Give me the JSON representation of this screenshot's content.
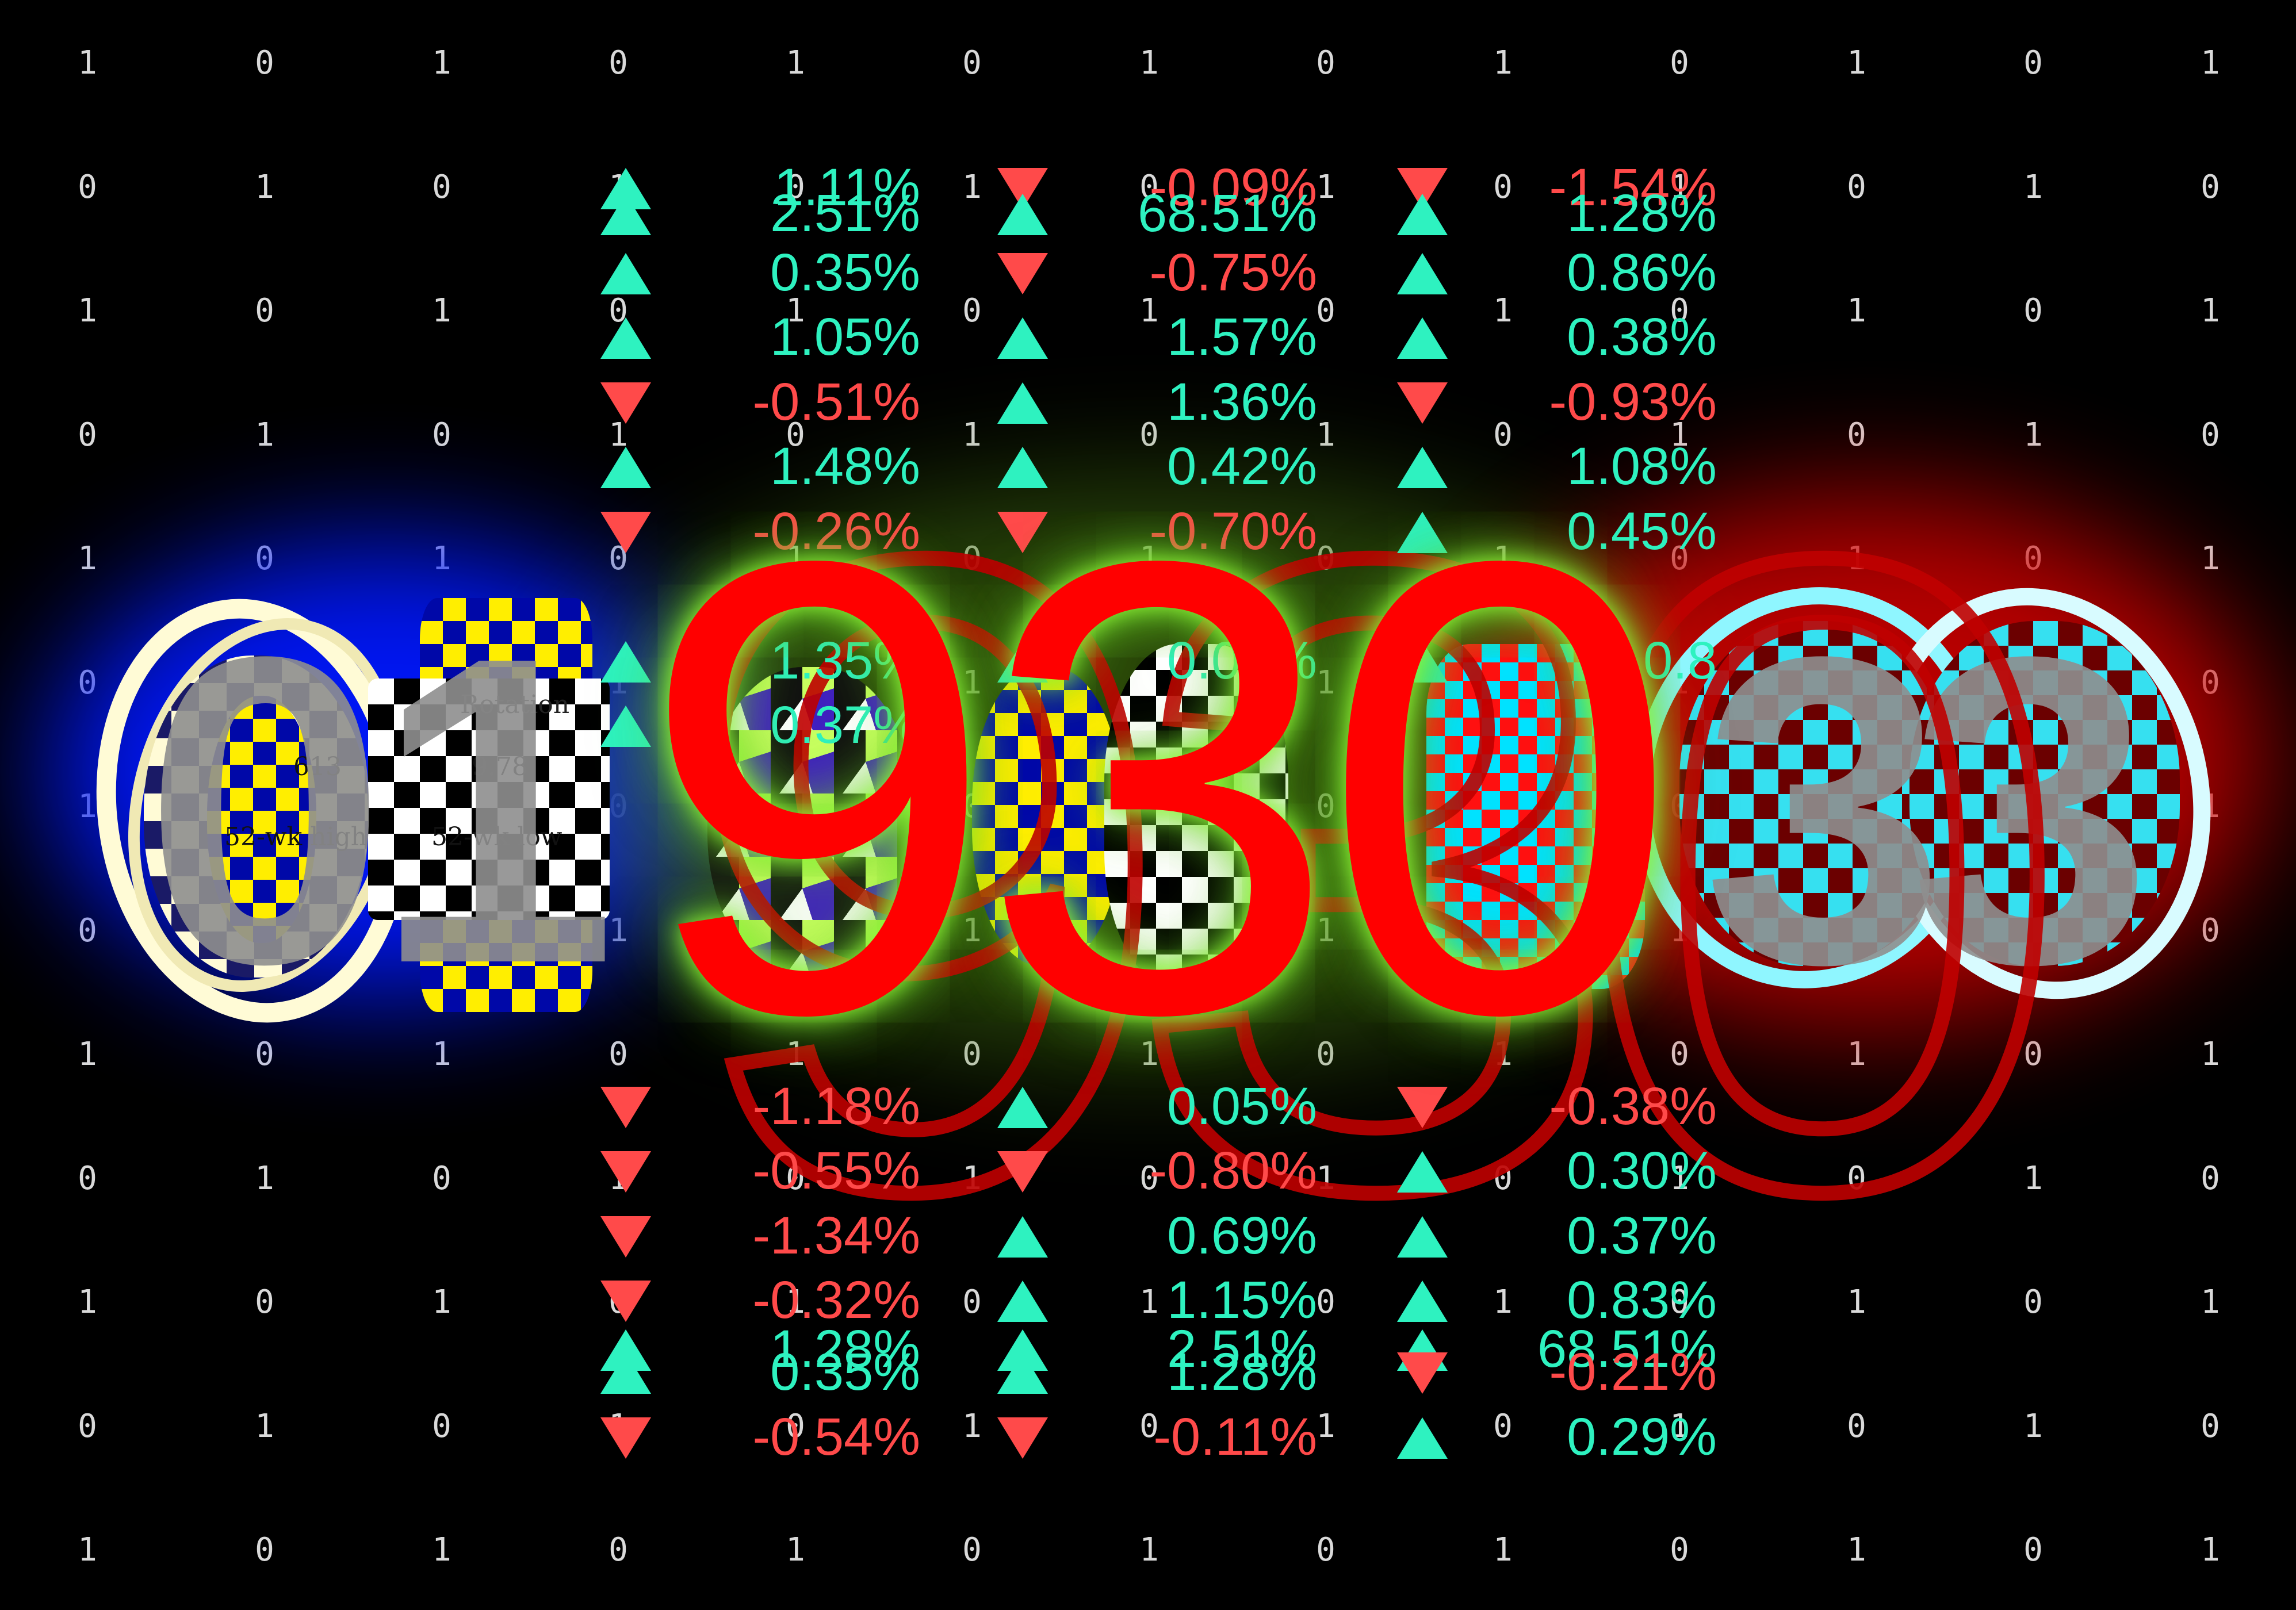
{
  "headline": "930",
  "ghost_headline": "930",
  "background_digits": [
    "0",
    "1",
    "3",
    "3"
  ],
  "stats_panel": {
    "header": "Rotation",
    "value_a": "613",
    "value_b": "9.78",
    "label_high": "52-wk high",
    "label_low": "52-wk low"
  },
  "binary_rows": [
    [
      "1",
      "0",
      "1",
      "0",
      "1",
      "0",
      "1",
      "0",
      "1",
      "0",
      "1",
      "0",
      "1"
    ],
    [
      "0",
      "1",
      "0",
      "1",
      "0",
      "1",
      "0",
      "1",
      "0",
      "1",
      "0",
      "1",
      "0"
    ],
    [
      "1",
      "0",
      "1",
      "0",
      "1",
      "0",
      "1",
      "0",
      "1",
      "0",
      "1",
      "0",
      "1"
    ],
    [
      "0",
      "1",
      "0",
      "1",
      "0",
      "1",
      "0",
      "1",
      "0",
      "1",
      "0",
      "1",
      "0"
    ],
    [
      "1",
      "0",
      "1",
      "0",
      "1",
      "0",
      "1",
      "0",
      "1",
      "0",
      "1",
      "0",
      "1"
    ],
    [
      "0",
      "1",
      "0",
      "1",
      "0",
      "1",
      "0",
      "1",
      "0",
      "1",
      "0",
      "1",
      "0"
    ],
    [
      "1",
      "0",
      "1",
      "0",
      "1",
      "0",
      "1",
      "0",
      "1",
      "0",
      "1",
      "0",
      "1"
    ],
    [
      "0",
      "1",
      "0",
      "1",
      "0",
      "1",
      "0",
      "1",
      "0",
      "1",
      "0",
      "1",
      "0"
    ],
    [
      "1",
      "0",
      "1",
      "0",
      "1",
      "0",
      "1",
      "0",
      "1",
      "0",
      "1",
      "0",
      "1"
    ],
    [
      "0",
      "1",
      "0",
      "1",
      "0",
      "1",
      "0",
      "1",
      "0",
      "1",
      "0",
      "1",
      "0"
    ],
    [
      "1",
      "0",
      "1",
      "0",
      "1",
      "0",
      "1",
      "0",
      "1",
      "0",
      "1",
      "0",
      "1"
    ],
    [
      "0",
      "1",
      "0",
      "1",
      "0",
      "1",
      "0",
      "1",
      "0",
      "1",
      "0",
      "1",
      "0"
    ],
    [
      "1",
      "0",
      "1",
      "0",
      "1",
      "0",
      "1",
      "0",
      "1",
      "0",
      "1",
      "0",
      "1"
    ]
  ],
  "ticker_columns": [
    [
      {
        "dir": "up",
        "value": "1.11%"
      },
      {
        "dir": "up",
        "value": "2.51%"
      },
      {
        "dir": "up",
        "value": "0.35%"
      },
      {
        "dir": "up",
        "value": "1.05%"
      },
      {
        "dir": "down",
        "value": "-0.51%"
      },
      {
        "dir": "up",
        "value": "1.48%"
      },
      {
        "dir": "down",
        "value": "-0.26%"
      },
      {
        "dir": "up",
        "value": "1.35%"
      },
      {
        "dir": "up",
        "value": "0.37%"
      },
      {
        "dir": "down",
        "value": "-1.18%"
      },
      {
        "dir": "down",
        "value": "-0.55%"
      },
      {
        "dir": "down",
        "value": "-1.34%"
      },
      {
        "dir": "down",
        "value": "-0.32%"
      },
      {
        "dir": "up",
        "value": "1.28%"
      },
      {
        "dir": "up",
        "value": "0.35%"
      },
      {
        "dir": "down",
        "value": "-0.54%"
      }
    ],
    [
      {
        "dir": "down",
        "value": "-0.09%"
      },
      {
        "dir": "up",
        "value": "68.51%"
      },
      {
        "dir": "down",
        "value": "-0.75%"
      },
      {
        "dir": "up",
        "value": "1.57%"
      },
      {
        "dir": "up",
        "value": "1.36%"
      },
      {
        "dir": "up",
        "value": "0.42%"
      },
      {
        "dir": "down",
        "value": "-0.70%"
      },
      {
        "dir": "up",
        "value": "0.01%"
      },
      {
        "dir": "up",
        "value": "0.05%"
      },
      {
        "dir": "down",
        "value": "-0.80%"
      },
      {
        "dir": "up",
        "value": "0.69%"
      },
      {
        "dir": "up",
        "value": "1.15%"
      },
      {
        "dir": "up",
        "value": "2.51%"
      },
      {
        "dir": "up",
        "value": "1.28%"
      },
      {
        "dir": "down",
        "value": "-0.11%"
      }
    ],
    [
      {
        "dir": "down",
        "value": "-1.54%"
      },
      {
        "dir": "up",
        "value": "1.28%"
      },
      {
        "dir": "up",
        "value": "0.86%"
      },
      {
        "dir": "up",
        "value": "0.38%"
      },
      {
        "dir": "down",
        "value": "-0.93%"
      },
      {
        "dir": "up",
        "value": "1.08%"
      },
      {
        "dir": "up",
        "value": "0.45%"
      },
      {
        "dir": "up",
        "value": "0.8"
      },
      {
        "dir": "down",
        "value": "-0.38%"
      },
      {
        "dir": "up",
        "value": "0.30%"
      },
      {
        "dir": "up",
        "value": "0.37%"
      },
      {
        "dir": "up",
        "value": "0.83%"
      },
      {
        "dir": "up",
        "value": "68.51%"
      },
      {
        "dir": "down",
        "value": "-0.21%"
      },
      {
        "dir": "up",
        "value": "0.29%"
      }
    ]
  ],
  "colors": {
    "up": "#2ef2c0",
    "down": "#ff4a4a",
    "headline": "#ff0000",
    "background": "#000000"
  }
}
